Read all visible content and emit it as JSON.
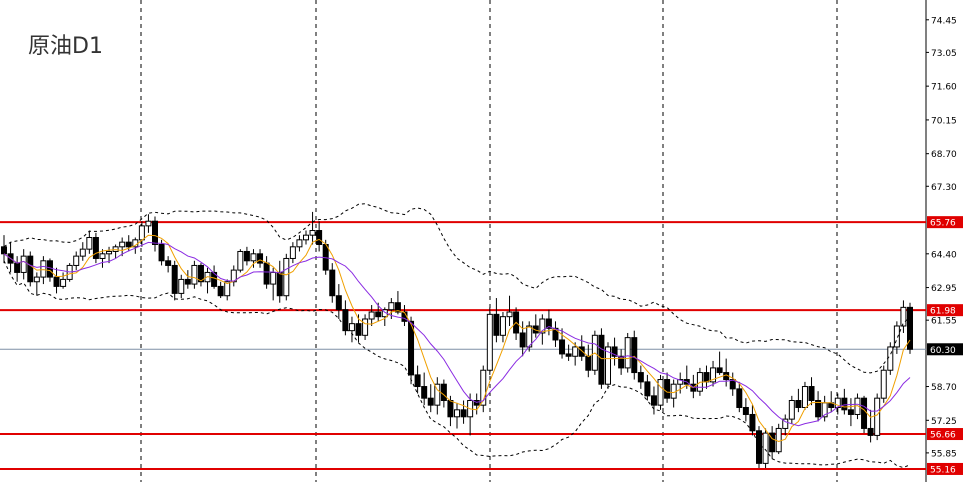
{
  "symbol": "原油D1",
  "colors": {
    "background": "#ffffff",
    "hline": "#e00000",
    "boll": "#000000",
    "ma_fast": "#f0a000",
    "ma_slow": "#8a2be2",
    "bid": "#7f8fa6",
    "text": "#000000"
  },
  "axis": {
    "ticks": [
      "74.45",
      "73.05",
      "71.60",
      "70.15",
      "68.70",
      "67.30",
      "65.76",
      "64.40",
      "62.95",
      "61.98",
      "61.55",
      "60.30",
      "58.70",
      "57.25",
      "56.66",
      "55.85",
      "55.16"
    ],
    "price_labels": [
      {
        "value": "65.76",
        "style": "red"
      },
      {
        "value": "61.98",
        "style": "red"
      },
      {
        "value": "60.30",
        "style": "dark"
      },
      {
        "value": "56.66",
        "style": "red"
      },
      {
        "value": "55.16",
        "style": "red"
      }
    ]
  },
  "chart_data": {
    "type": "candlestick",
    "ylim": [
      54.6,
      75.3
    ],
    "ohlc": [
      [
        64.7,
        65.2,
        64.0,
        64.4
      ],
      [
        64.4,
        64.9,
        63.6,
        64.0
      ],
      [
        64.0,
        64.3,
        63.2,
        63.6
      ],
      [
        63.6,
        64.6,
        63.3,
        64.3
      ],
      [
        64.3,
        64.5,
        63.0,
        63.2
      ],
      [
        63.2,
        63.6,
        62.6,
        63.4
      ],
      [
        63.4,
        64.3,
        63.1,
        64.1
      ],
      [
        64.1,
        64.2,
        63.2,
        63.4
      ],
      [
        63.4,
        63.8,
        62.7,
        63.0
      ],
      [
        63.0,
        63.6,
        62.9,
        63.3
      ],
      [
        63.3,
        64.0,
        63.2,
        63.9
      ],
      [
        63.9,
        64.5,
        63.7,
        64.3
      ],
      [
        64.3,
        64.9,
        64.1,
        64.6
      ],
      [
        64.6,
        65.4,
        64.4,
        65.1
      ],
      [
        65.1,
        65.3,
        64.0,
        64.2
      ],
      [
        64.2,
        64.6,
        63.8,
        64.4
      ],
      [
        64.4,
        64.7,
        64.0,
        64.5
      ],
      [
        64.5,
        64.8,
        64.2,
        64.7
      ],
      [
        64.7,
        65.1,
        64.3,
        64.9
      ],
      [
        64.9,
        65.2,
        64.5,
        64.7
      ],
      [
        64.7,
        65.1,
        64.4,
        65.0
      ],
      [
        65.0,
        65.8,
        64.7,
        65.6
      ],
      [
        65.6,
        66.1,
        65.3,
        65.8
      ],
      [
        65.8,
        66.0,
        64.5,
        64.8
      ],
      [
        64.8,
        65.0,
        63.9,
        64.1
      ],
      [
        64.1,
        64.3,
        63.6,
        63.9
      ],
      [
        63.9,
        64.1,
        62.4,
        62.7
      ],
      [
        62.7,
        63.5,
        62.5,
        63.3
      ],
      [
        63.3,
        63.7,
        62.9,
        63.1
      ],
      [
        63.1,
        64.1,
        62.9,
        63.9
      ],
      [
        63.9,
        64.0,
        63.0,
        63.2
      ],
      [
        63.2,
        63.8,
        62.7,
        63.6
      ],
      [
        63.6,
        63.9,
        62.9,
        63.0
      ],
      [
        63.0,
        63.2,
        62.5,
        62.6
      ],
      [
        62.6,
        63.3,
        62.4,
        63.2
      ],
      [
        63.2,
        63.9,
        63.0,
        63.7
      ],
      [
        63.7,
        64.6,
        63.6,
        64.5
      ],
      [
        64.5,
        64.7,
        63.9,
        64.1
      ],
      [
        64.1,
        64.6,
        63.8,
        64.4
      ],
      [
        64.4,
        64.6,
        63.8,
        64.0
      ],
      [
        64.0,
        64.3,
        62.9,
        63.1
      ],
      [
        63.1,
        63.8,
        62.4,
        63.6
      ],
      [
        63.6,
        64.1,
        62.3,
        62.6
      ],
      [
        62.6,
        64.4,
        62.4,
        64.2
      ],
      [
        64.2,
        64.9,
        64.0,
        64.7
      ],
      [
        64.7,
        65.2,
        64.5,
        65.0
      ],
      [
        65.0,
        65.4,
        64.8,
        65.2
      ],
      [
        65.2,
        66.2,
        64.8,
        65.4
      ],
      [
        65.4,
        65.8,
        64.5,
        64.8
      ],
      [
        64.8,
        65.0,
        63.5,
        63.7
      ],
      [
        63.7,
        64.0,
        62.3,
        62.6
      ],
      [
        62.6,
        63.1,
        61.6,
        62.0
      ],
      [
        62.0,
        62.4,
        60.9,
        61.1
      ],
      [
        61.1,
        61.7,
        60.6,
        61.4
      ],
      [
        61.4,
        61.8,
        60.6,
        60.9
      ],
      [
        60.9,
        61.8,
        60.7,
        61.6
      ],
      [
        61.6,
        62.2,
        61.3,
        61.9
      ],
      [
        61.9,
        62.3,
        61.5,
        61.7
      ],
      [
        61.7,
        62.1,
        61.3,
        62.0
      ],
      [
        62.0,
        62.5,
        61.6,
        62.3
      ],
      [
        62.3,
        62.8,
        61.8,
        61.9
      ],
      [
        61.9,
        62.2,
        61.3,
        61.5
      ],
      [
        61.5,
        61.7,
        58.8,
        59.2
      ],
      [
        59.2,
        59.6,
        58.4,
        58.7
      ],
      [
        58.7,
        59.3,
        57.9,
        58.2
      ],
      [
        58.2,
        58.8,
        57.6,
        57.9
      ],
      [
        57.9,
        59.1,
        57.5,
        58.8
      ],
      [
        58.8,
        59.0,
        57.8,
        58.1
      ],
      [
        58.1,
        58.3,
        57.0,
        57.4
      ],
      [
        57.4,
        58.0,
        56.9,
        57.7
      ],
      [
        57.7,
        58.1,
        57.1,
        57.4
      ],
      [
        57.4,
        58.4,
        56.6,
        58.1
      ],
      [
        58.1,
        58.4,
        57.5,
        57.9
      ],
      [
        57.9,
        59.6,
        57.6,
        59.4
      ],
      [
        59.4,
        62.1,
        59.2,
        61.8
      ],
      [
        61.8,
        62.5,
        60.6,
        60.9
      ],
      [
        60.9,
        61.9,
        60.6,
        61.7
      ],
      [
        61.7,
        62.6,
        61.3,
        61.9
      ],
      [
        61.9,
        62.1,
        60.7,
        61.0
      ],
      [
        61.0,
        61.5,
        60.0,
        60.4
      ],
      [
        60.4,
        61.5,
        60.2,
        61.3
      ],
      [
        61.3,
        61.8,
        60.8,
        61.0
      ],
      [
        61.0,
        61.8,
        60.5,
        61.6
      ],
      [
        61.6,
        62.0,
        60.9,
        61.2
      ],
      [
        61.2,
        61.5,
        60.4,
        60.7
      ],
      [
        60.7,
        61.2,
        59.9,
        60.1
      ],
      [
        60.1,
        60.5,
        59.8,
        60.0
      ],
      [
        60.0,
        60.6,
        59.6,
        60.4
      ],
      [
        60.4,
        60.9,
        59.8,
        60.0
      ],
      [
        60.0,
        60.5,
        59.1,
        59.4
      ],
      [
        59.4,
        61.1,
        59.2,
        60.9
      ],
      [
        60.9,
        61.2,
        58.6,
        58.8
      ],
      [
        58.8,
        60.6,
        58.6,
        60.4
      ],
      [
        60.4,
        60.8,
        59.6,
        60.0
      ],
      [
        60.0,
        60.3,
        59.2,
        59.5
      ],
      [
        59.5,
        61.0,
        59.3,
        60.8
      ],
      [
        60.8,
        61.1,
        59.0,
        59.3
      ],
      [
        59.3,
        59.6,
        58.6,
        58.9
      ],
      [
        58.9,
        59.2,
        58.1,
        58.3
      ],
      [
        58.3,
        58.7,
        57.5,
        57.9
      ],
      [
        57.9,
        59.2,
        57.7,
        59.0
      ],
      [
        59.0,
        59.3,
        58.0,
        58.2
      ],
      [
        58.2,
        59.0,
        57.8,
        58.8
      ],
      [
        58.8,
        59.3,
        58.4,
        59.0
      ],
      [
        59.0,
        59.6,
        58.6,
        58.8
      ],
      [
        58.8,
        59.2,
        58.2,
        58.5
      ],
      [
        58.5,
        59.5,
        58.3,
        59.3
      ],
      [
        59.3,
        59.6,
        58.6,
        58.9
      ],
      [
        58.9,
        59.8,
        58.7,
        59.5
      ],
      [
        59.5,
        60.2,
        59.2,
        59.3
      ],
      [
        59.3,
        59.9,
        58.7,
        59.0
      ],
      [
        59.0,
        59.3,
        58.3,
        58.6
      ],
      [
        58.6,
        58.9,
        57.6,
        57.8
      ],
      [
        57.8,
        58.2,
        57.2,
        57.5
      ],
      [
        57.5,
        57.9,
        56.6,
        56.8
      ],
      [
        56.8,
        57.0,
        55.2,
        55.4
      ],
      [
        55.4,
        56.9,
        55.2,
        56.7
      ],
      [
        56.7,
        57.0,
        55.6,
        55.9
      ],
      [
        55.9,
        57.1,
        55.8,
        56.9
      ],
      [
        56.9,
        57.5,
        56.6,
        57.3
      ],
      [
        57.3,
        58.3,
        57.1,
        58.1
      ],
      [
        58.1,
        58.6,
        57.6,
        57.8
      ],
      [
        57.8,
        58.9,
        57.7,
        58.7
      ],
      [
        58.7,
        59.1,
        57.9,
        58.1
      ],
      [
        58.1,
        58.5,
        57.2,
        57.4
      ],
      [
        57.4,
        58.3,
        57.2,
        58.0
      ],
      [
        58.0,
        58.5,
        57.6,
        57.8
      ],
      [
        57.8,
        58.4,
        57.5,
        58.2
      ],
      [
        58.2,
        58.6,
        57.5,
        57.7
      ],
      [
        57.7,
        58.2,
        57.0,
        57.5
      ],
      [
        57.5,
        58.4,
        57.3,
        58.2
      ],
      [
        58.2,
        58.3,
        56.7,
        56.9
      ],
      [
        56.9,
        57.7,
        56.3,
        56.6
      ],
      [
        56.6,
        58.4,
        56.4,
        58.2
      ],
      [
        58.2,
        59.6,
        58.0,
        59.4
      ],
      [
        59.4,
        60.6,
        59.2,
        60.4
      ],
      [
        60.4,
        61.5,
        60.1,
        61.3
      ],
      [
        61.3,
        62.4,
        61.0,
        62.1
      ],
      [
        62.1,
        62.3,
        60.1,
        60.3
      ]
    ]
  }
}
